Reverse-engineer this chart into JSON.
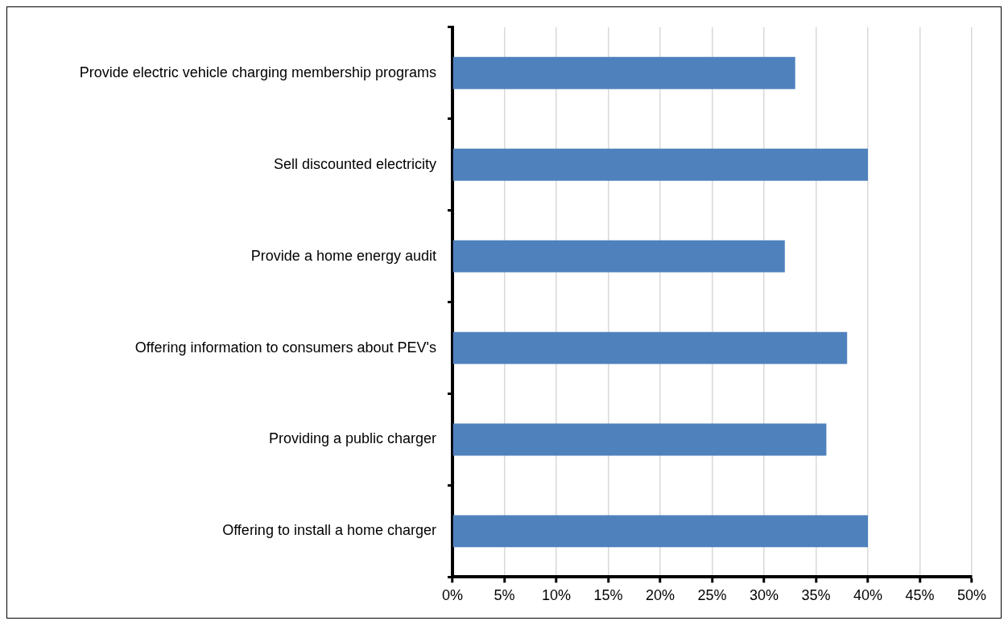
{
  "chart_data": {
    "type": "bar",
    "orientation": "horizontal",
    "categories": [
      "Provide electric vehicle charging membership programs",
      "Sell discounted electricity",
      "Provide a home energy audit",
      "Offering information to consumers about PEV's",
      "Providing a public charger",
      "Offering to install a home charger"
    ],
    "values": [
      33,
      40,
      32,
      38,
      36,
      40
    ],
    "color": "#4f81bd",
    "xlim": [
      0,
      50
    ],
    "xticks": [
      {
        "value": 0,
        "label": "0%"
      },
      {
        "value": 5,
        "label": "5%"
      },
      {
        "value": 10,
        "label": "10%"
      },
      {
        "value": 15,
        "label": "15%"
      },
      {
        "value": 20,
        "label": "20%"
      },
      {
        "value": 25,
        "label": "25%"
      },
      {
        "value": 30,
        "label": "30%"
      },
      {
        "value": 35,
        "label": "35%"
      },
      {
        "value": 40,
        "label": "40%"
      },
      {
        "value": 45,
        "label": "45%"
      },
      {
        "value": 50,
        "label": "50%"
      }
    ],
    "grid": "x",
    "legend": false
  }
}
